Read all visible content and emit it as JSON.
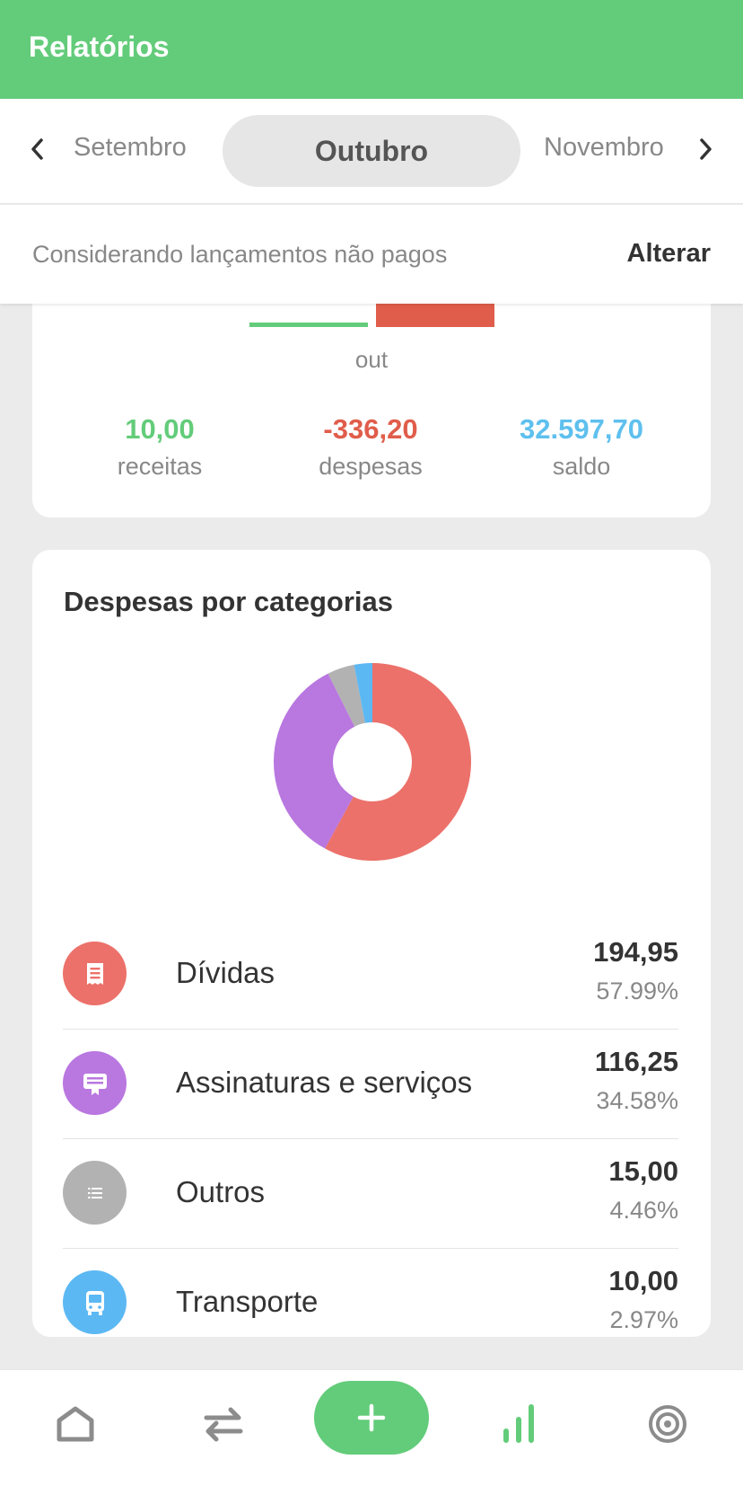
{
  "header": {
    "title": "Relatórios"
  },
  "months": {
    "previous": "Setembro",
    "current": "Outubro",
    "next": "Novembro"
  },
  "filter": {
    "text": "Considerando lançamentos não pagos",
    "button": "Alterar"
  },
  "overview": {
    "bar_label": "out",
    "summary": [
      {
        "value": "10,00",
        "label": "receitas",
        "color": "#63cc7a"
      },
      {
        "value": "-336,20",
        "label": "despesas",
        "color": "#e05d4b"
      },
      {
        "value": "32.597,70",
        "label": "saldo",
        "color": "#5ec0ee"
      }
    ]
  },
  "categories_card": {
    "title": "Despesas por categorias",
    "items": [
      {
        "name": "Dívidas",
        "amount": "194,95",
        "percent": "57.99%",
        "color": "#ec716a",
        "icon": "receipt-icon"
      },
      {
        "name": "Assinaturas e serviços",
        "amount": "116,25",
        "percent": "34.58%",
        "color": "#b977e0",
        "icon": "monitor-icon"
      },
      {
        "name": "Outros",
        "amount": "15,00",
        "percent": "4.46%",
        "color": "#b2b2b2",
        "icon": "list-icon"
      },
      {
        "name": "Transporte",
        "amount": "10,00",
        "percent": "2.97%",
        "color": "#5cb8f3",
        "icon": "bus-icon"
      }
    ]
  },
  "chart_data": {
    "type": "pie",
    "categories": [
      "Dívidas",
      "Assinaturas e serviços",
      "Outros",
      "Transporte"
    ],
    "values": [
      57.99,
      34.58,
      4.46,
      2.97
    ],
    "colors": [
      "#ec716a",
      "#b977e0",
      "#b2b2b2",
      "#5cb8f3"
    ],
    "donut": true
  },
  "nav": {
    "items": [
      {
        "icon": "home-icon"
      },
      {
        "icon": "transfer-icon"
      },
      {
        "icon": "plus-icon"
      },
      {
        "icon": "bar-chart-icon"
      },
      {
        "icon": "target-icon"
      }
    ],
    "active_color": "#63cc7a"
  }
}
